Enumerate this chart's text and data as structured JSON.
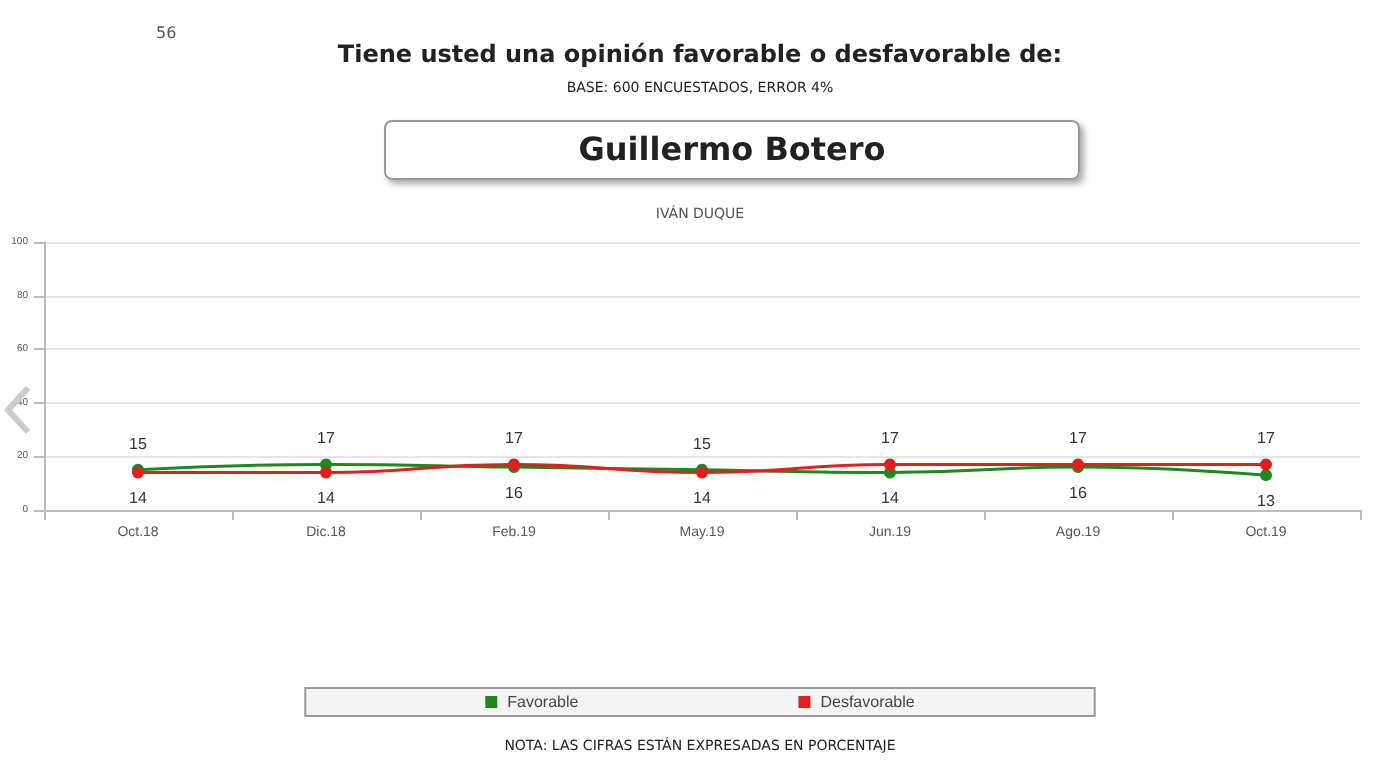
{
  "chart_data": {
    "type": "line",
    "title": "Tiene usted una opinión favorable o desfavorable de:",
    "subtitle": "BASE: 600 ENCUESTADOS, ERROR 4%",
    "annotations": [
      "56",
      "Guillermo Botero",
      "IVÁN DUQUE",
      "NOTA: LAS CIFRAS ESTÁN EXPRESADAS EN PORCENTAJE"
    ],
    "categories": [
      "Oct.18",
      "Dic.18",
      "Feb.19",
      "May.19",
      "Jun.19",
      "Ago.19",
      "Oct.19"
    ],
    "series": [
      {
        "name": "Favorable",
        "color": "#1e8a1e",
        "values": [
          15,
          17,
          16,
          15,
          14,
          16,
          13
        ]
      },
      {
        "name": "Desfavorable",
        "color": "#e02020",
        "values": [
          14,
          14,
          17,
          14,
          17,
          17,
          17
        ]
      }
    ],
    "ylim": [
      0,
      100
    ],
    "yticks": [
      0,
      20,
      40,
      60,
      80,
      100
    ],
    "grid": "y",
    "legend": "bottom",
    "marker": "circle",
    "line_style": "solid",
    "data_labels": true
  }
}
